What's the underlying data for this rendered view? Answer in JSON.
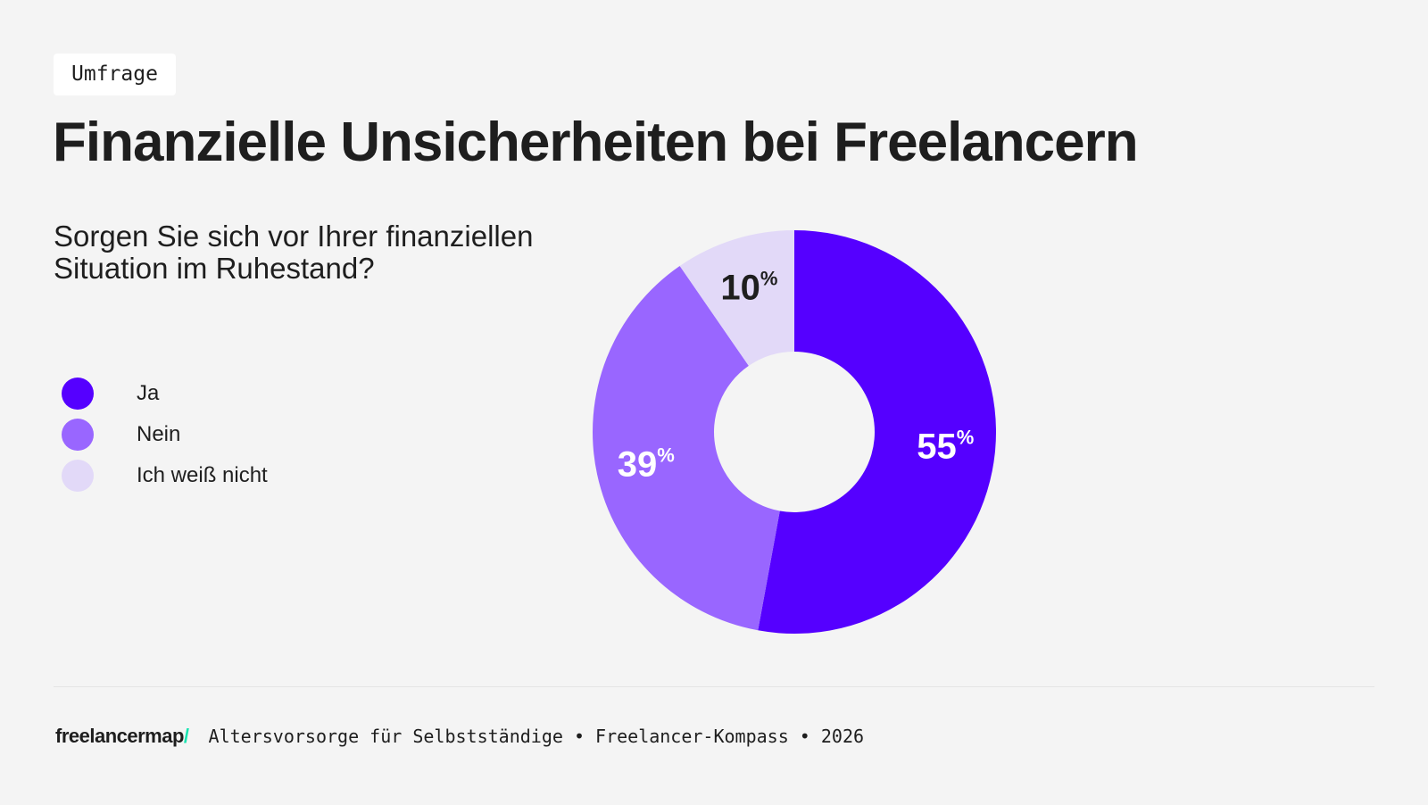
{
  "tag": "Umfrage",
  "title": "Finanzielle Unsicherheiten bei Freelancern",
  "question": "Sorgen Sie sich vor Ihrer finanziellen Situation im Ruhestand?",
  "footer": {
    "logo": "freelancermap",
    "logo_slash": "/",
    "text": "Altersvorsorge für Selbstständige • Freelancer-Kompass • 2026"
  },
  "chart_data": {
    "type": "pie",
    "donut": true,
    "categories": [
      "Ja",
      "Nein",
      "Ich weiß nicht"
    ],
    "values": [
      55,
      39,
      10
    ],
    "labels": [
      "55%",
      "39%",
      "10%"
    ],
    "colors": [
      "#5500ff",
      "#9966ff",
      "#e2d9f8"
    ],
    "label_colors": [
      "#ffffff",
      "#ffffff",
      "#1e1e1e"
    ],
    "legend_position": "left"
  }
}
